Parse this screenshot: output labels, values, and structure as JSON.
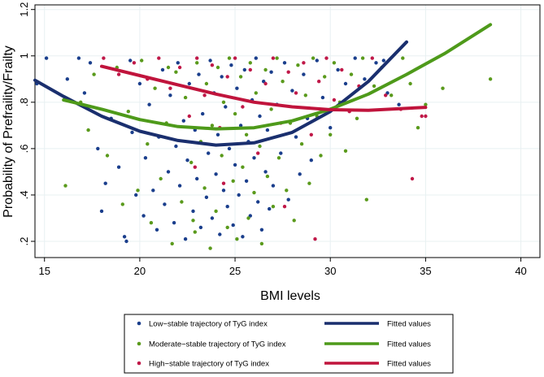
{
  "chart_data": {
    "type": "scatter",
    "title": "",
    "xlabel": "BMI levels",
    "ylabel": "Probability of Prefraility/Frailty",
    "xlim": [
      14.5,
      41
    ],
    "ylim": [
      0.13,
      1.22
    ],
    "xticks": [
      15,
      20,
      25,
      30,
      35,
      40
    ],
    "xtick_labels": [
      "15",
      "20",
      "25",
      "30",
      "35",
      "40"
    ],
    "yticks": [
      0.2,
      0.4,
      0.6,
      0.8,
      1.0,
      1.2
    ],
    "ytick_labels": [
      ".2",
      ".4",
      ".6",
      ".8",
      "1",
      "1.2"
    ],
    "grid": true,
    "legend_position": "bottom",
    "series": [
      {
        "name": "Low-stable trajectory of TyG index",
        "kind": "scatter",
        "color": "#1a3e8c",
        "points": [
          [
            14.6,
            0.88
          ],
          [
            15.1,
            0.99
          ],
          [
            16.2,
            0.9
          ],
          [
            16.8,
            0.99
          ],
          [
            17.1,
            0.84
          ],
          [
            17.4,
            0.97
          ],
          [
            17.8,
            0.6
          ],
          [
            18.0,
            0.33
          ],
          [
            18.2,
            0.45
          ],
          [
            18.5,
            0.73
          ],
          [
            18.9,
            0.52
          ],
          [
            19.2,
            0.22
          ],
          [
            19.3,
            0.2
          ],
          [
            19.5,
            0.98
          ],
          [
            19.6,
            0.67
          ],
          [
            19.8,
            0.4
          ],
          [
            20.0,
            0.88
          ],
          [
            20.2,
            0.31
          ],
          [
            20.3,
            0.56
          ],
          [
            20.5,
            0.79
          ],
          [
            20.7,
            0.42
          ],
          [
            20.9,
            0.25
          ],
          [
            21.0,
            0.65
          ],
          [
            21.2,
            0.94
          ],
          [
            21.3,
            0.36
          ],
          [
            21.5,
            0.5
          ],
          [
            21.6,
            0.83
          ],
          [
            21.8,
            0.28
          ],
          [
            21.9,
            0.61
          ],
          [
            22.0,
            0.97
          ],
          [
            22.1,
            0.44
          ],
          [
            22.3,
            0.72
          ],
          [
            22.4,
            0.21
          ],
          [
            22.5,
            0.55
          ],
          [
            22.6,
            0.88
          ],
          [
            22.8,
            0.33
          ],
          [
            22.9,
            0.68
          ],
          [
            23.0,
            0.47
          ],
          [
            23.1,
            0.92
          ],
          [
            23.2,
            0.26
          ],
          [
            23.3,
            0.75
          ],
          [
            23.5,
            0.39
          ],
          [
            23.6,
            0.58
          ],
          [
            23.7,
            0.98
          ],
          [
            23.8,
            0.3
          ],
          [
            23.9,
            0.84
          ],
          [
            24.0,
            0.49
          ],
          [
            24.1,
            0.66
          ],
          [
            24.2,
            0.23
          ],
          [
            24.3,
            0.91
          ],
          [
            24.4,
            0.42
          ],
          [
            24.5,
            0.78
          ],
          [
            24.6,
            0.35
          ],
          [
            24.7,
            0.6
          ],
          [
            24.8,
            0.96
          ],
          [
            24.9,
            0.27
          ],
          [
            25.0,
            0.53
          ],
          [
            25.1,
            0.86
          ],
          [
            25.2,
            0.4
          ],
          [
            25.3,
            0.7
          ],
          [
            25.4,
            0.22
          ],
          [
            25.5,
            0.94
          ],
          [
            25.6,
            0.46
          ],
          [
            25.7,
            0.63
          ],
          [
            25.8,
            0.31
          ],
          [
            25.9,
            0.81
          ],
          [
            26.0,
            0.56
          ],
          [
            26.1,
            0.99
          ],
          [
            26.2,
            0.37
          ],
          [
            26.3,
            0.74
          ],
          [
            26.4,
            0.25
          ],
          [
            26.5,
            0.89
          ],
          [
            26.6,
            0.5
          ],
          [
            26.7,
            0.68
          ],
          [
            26.8,
            0.34
          ],
          [
            26.9,
            0.93
          ],
          [
            27.0,
            0.44
          ],
          [
            27.2,
            0.79
          ],
          [
            27.4,
            0.58
          ],
          [
            27.6,
            0.97
          ],
          [
            27.8,
            0.38
          ],
          [
            28.0,
            0.85
          ],
          [
            28.2,
            0.65
          ],
          [
            28.4,
            0.49
          ],
          [
            28.6,
            0.92
          ],
          [
            28.8,
            0.73
          ],
          [
            29.0,
            0.55
          ],
          [
            29.3,
            0.98
          ],
          [
            29.6,
            0.82
          ],
          [
            30.0,
            0.69
          ],
          [
            30.4,
            0.94
          ],
          [
            30.8,
            0.88
          ],
          [
            31.3,
            0.99
          ],
          [
            31.8,
            0.9
          ],
          [
            32.4,
            0.97
          ],
          [
            33.0,
            0.84
          ],
          [
            33.6,
            0.79
          ],
          [
            32.8,
            0.98
          ]
        ]
      },
      {
        "name": "Moderate-stable trajectory of TyG index",
        "kind": "scatter",
        "color": "#5a9a1c",
        "points": [
          [
            16.1,
            0.44
          ],
          [
            16.9,
            0.8
          ],
          [
            17.6,
            0.92
          ],
          [
            18.3,
            0.57
          ],
          [
            18.8,
            0.95
          ],
          [
            19.4,
            0.76
          ],
          [
            19.9,
            0.42
          ],
          [
            20.1,
            0.98
          ],
          [
            20.4,
            0.62
          ],
          [
            20.6,
            0.28
          ],
          [
            20.8,
            0.86
          ],
          [
            21.1,
            0.47
          ],
          [
            21.4,
            0.71
          ],
          [
            21.7,
            0.19
          ],
          [
            21.9,
            0.93
          ],
          [
            22.2,
            0.37
          ],
          [
            22.4,
            0.82
          ],
          [
            22.7,
            0.54
          ],
          [
            22.9,
            0.24
          ],
          [
            23.0,
            0.97
          ],
          [
            23.2,
            0.63
          ],
          [
            23.4,
            0.43
          ],
          [
            23.5,
            0.88
          ],
          [
            23.7,
            0.17
          ],
          [
            23.8,
            0.7
          ],
          [
            24.0,
            0.33
          ],
          [
            24.1,
            0.95
          ],
          [
            24.3,
            0.57
          ],
          [
            24.4,
            0.8
          ],
          [
            24.6,
            0.26
          ],
          [
            24.7,
            0.99
          ],
          [
            24.9,
            0.46
          ],
          [
            25.0,
            0.75
          ],
          [
            25.1,
            0.21
          ],
          [
            25.3,
            0.91
          ],
          [
            25.4,
            0.52
          ],
          [
            25.6,
            0.66
          ],
          [
            25.7,
            0.3
          ],
          [
            25.8,
            0.97
          ],
          [
            26.0,
            0.41
          ],
          [
            26.1,
            0.84
          ],
          [
            26.3,
            0.61
          ],
          [
            26.4,
            0.19
          ],
          [
            26.6,
            0.94
          ],
          [
            26.7,
            0.48
          ],
          [
            26.9,
            0.77
          ],
          [
            27.0,
            0.35
          ],
          [
            27.2,
            0.99
          ],
          [
            27.3,
            0.56
          ],
          [
            27.5,
            0.89
          ],
          [
            27.7,
            0.42
          ],
          [
            27.9,
            0.71
          ],
          [
            28.1,
            0.29
          ],
          [
            28.3,
            0.96
          ],
          [
            28.5,
            0.62
          ],
          [
            28.7,
            0.83
          ],
          [
            28.9,
            0.45
          ],
          [
            29.1,
            0.99
          ],
          [
            29.3,
            0.74
          ],
          [
            29.5,
            0.57
          ],
          [
            29.7,
            0.91
          ],
          [
            30.0,
            0.66
          ],
          [
            30.2,
            0.97
          ],
          [
            30.5,
            0.8
          ],
          [
            30.8,
            0.59
          ],
          [
            31.1,
            0.92
          ],
          [
            31.4,
            0.73
          ],
          [
            31.7,
            0.99
          ],
          [
            31.9,
            0.38
          ],
          [
            32.3,
            0.87
          ],
          [
            32.7,
            0.95
          ],
          [
            33.2,
            0.83
          ],
          [
            33.8,
            0.99
          ],
          [
            34.2,
            0.88
          ],
          [
            34.6,
            0.69
          ],
          [
            35.0,
            0.79
          ],
          [
            35.9,
            0.86
          ],
          [
            38.4,
            0.9
          ],
          [
            17.3,
            0.68
          ],
          [
            19.1,
            0.36
          ],
          [
            21.5,
            0.95
          ],
          [
            22.8,
            0.29
          ]
        ]
      },
      {
        "name": "High-stable trajectory of TyG index",
        "kind": "scatter",
        "color": "#c01848",
        "points": [
          [
            18.1,
            0.99
          ],
          [
            18.9,
            0.92
          ],
          [
            19.7,
            0.97
          ],
          [
            20.4,
            0.9
          ],
          [
            21.0,
            0.99
          ],
          [
            21.6,
            0.86
          ],
          [
            22.1,
            0.95
          ],
          [
            22.6,
            0.74
          ],
          [
            23.0,
            0.99
          ],
          [
            23.4,
            0.83
          ],
          [
            23.8,
            0.96
          ],
          [
            24.2,
            0.69
          ],
          [
            24.6,
            0.91
          ],
          [
            25.0,
            0.99
          ],
          [
            25.4,
            0.78
          ],
          [
            25.8,
            0.94
          ],
          [
            26.2,
            0.58
          ],
          [
            26.6,
            0.88
          ],
          [
            27.0,
            0.99
          ],
          [
            27.4,
            0.71
          ],
          [
            27.8,
            0.93
          ],
          [
            28.2,
            0.84
          ],
          [
            28.6,
            0.97
          ],
          [
            29.0,
            0.66
          ],
          [
            29.2,
            0.21
          ],
          [
            29.4,
            0.89
          ],
          [
            29.8,
            0.99
          ],
          [
            30.2,
            0.81
          ],
          [
            30.6,
            0.94
          ],
          [
            31.0,
            0.76
          ],
          [
            31.5,
            0.87
          ],
          [
            32.2,
            0.99
          ],
          [
            32.9,
            0.83
          ],
          [
            33.7,
            0.77
          ],
          [
            34.3,
            0.47
          ],
          [
            34.8,
            0.74
          ],
          [
            35.0,
            0.74
          ],
          [
            24.4,
            0.45
          ],
          [
            22.9,
            0.52
          ],
          [
            27.6,
            0.35
          ]
        ]
      },
      {
        "name": "Fitted values",
        "kind": "line",
        "color": "#1a2f6e",
        "x": [
          14.5,
          16,
          18,
          20,
          22,
          24,
          26,
          28,
          30,
          32,
          34
        ],
        "y": [
          0.895,
          0.825,
          0.74,
          0.675,
          0.635,
          0.615,
          0.625,
          0.67,
          0.76,
          0.89,
          1.06
        ]
      },
      {
        "name": "Fitted values",
        "kind": "line",
        "color": "#4e9a1a",
        "x": [
          16,
          18,
          20,
          22,
          24,
          26,
          28,
          30,
          32,
          34,
          36,
          38.4
        ],
        "y": [
          0.81,
          0.77,
          0.725,
          0.695,
          0.685,
          0.69,
          0.72,
          0.77,
          0.835,
          0.92,
          1.01,
          1.135
        ]
      },
      {
        "name": "Fitted values",
        "kind": "line",
        "color": "#c0143c",
        "x": [
          18,
          20,
          22,
          24,
          26,
          28,
          30,
          32,
          35
        ],
        "y": [
          0.955,
          0.915,
          0.875,
          0.835,
          0.8,
          0.78,
          0.768,
          0.765,
          0.778
        ]
      }
    ]
  },
  "legend": {
    "items": [
      {
        "label": "Low−stable trajectory of TyG index",
        "color": "#1a3e8c",
        "kind": "marker"
      },
      {
        "label": "Fitted values",
        "color": "#1a2f6e",
        "kind": "line"
      },
      {
        "label": "Moderate−stable trajectory of TyG index",
        "color": "#5a9a1c",
        "kind": "marker"
      },
      {
        "label": "Fitted values",
        "color": "#4e9a1a",
        "kind": "line"
      },
      {
        "label": "High−stable trajectory of TyG index",
        "color": "#c01848",
        "kind": "marker"
      },
      {
        "label": "Fitted values",
        "color": "#c0143c",
        "kind": "line"
      }
    ]
  }
}
